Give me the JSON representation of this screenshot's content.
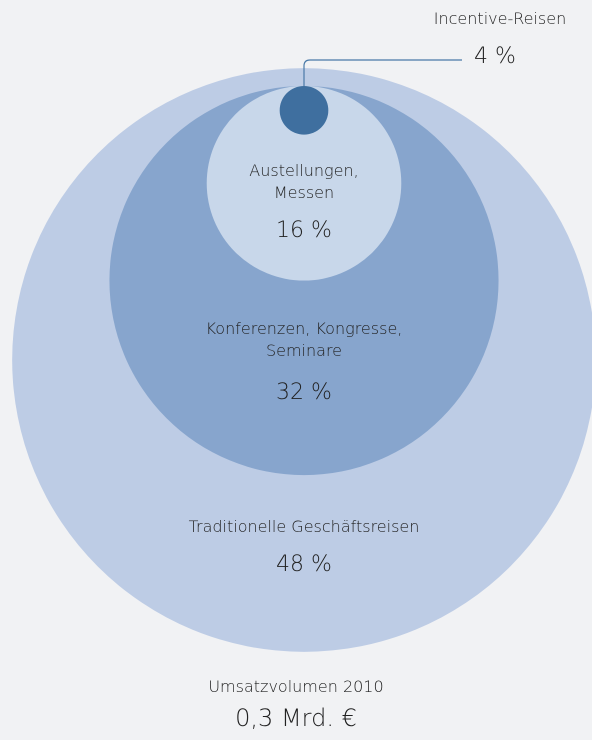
{
  "chart_data": {
    "type": "nested-circles",
    "categories": [
      "Traditionelle Geschäftsreisen",
      "Konferenzen, Kongresse, Seminare",
      "Austellungen, Messen",
      "Incentive-Reisen"
    ],
    "values": [
      48,
      32,
      16,
      4
    ],
    "value_labels": [
      "48 %",
      "32 %",
      "16 %",
      "4 %"
    ],
    "colors": [
      "#bdcce5",
      "#87a5cd",
      "#c8d7ea",
      "#3f6f9f"
    ],
    "total": {
      "label": "Umsatzvolumen 2010",
      "value": 0.3,
      "value_label": "0,3 Mrd. €"
    }
  }
}
